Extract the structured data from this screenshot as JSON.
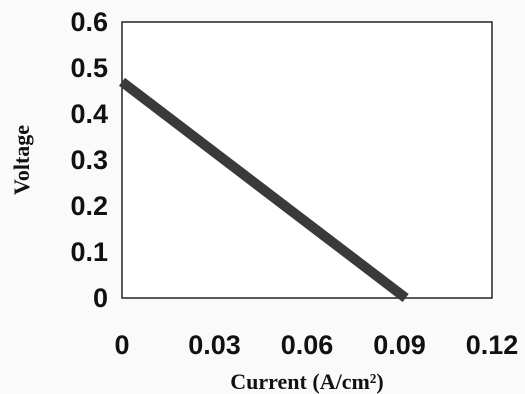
{
  "chart_data": {
    "type": "line",
    "title": "",
    "xlabel": "Current (A/cm²)",
    "ylabel": "Voltage",
    "xlim": [
      0,
      0.12
    ],
    "ylim": [
      0,
      0.6
    ],
    "xticks": [
      "0",
      "0.03",
      "0.06",
      "0.09",
      "0.12"
    ],
    "yticks": [
      "0",
      "0.1",
      "0.2",
      "0.3",
      "0.4",
      "0.5",
      "0.6"
    ],
    "grid": false,
    "legend": "none",
    "series": [
      {
        "x": [
          0,
          0.092
        ],
        "y": [
          0.47,
          0
        ],
        "color": "#3a3a3a"
      }
    ]
  }
}
